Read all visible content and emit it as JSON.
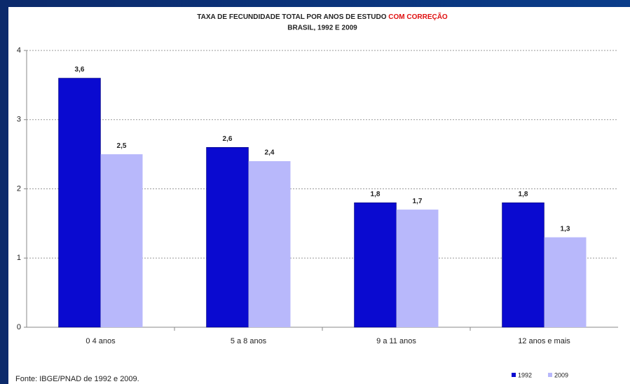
{
  "chart_data": {
    "type": "bar",
    "title": "TAXA DE FECUNDIDADE TOTAL POR ANOS DE ESTUDO",
    "title_highlight": "COM CORREÇÃO",
    "subtitle": "BRASIL, 1992 E 2009",
    "categories": [
      "0 4 anos",
      "5 a 8 anos",
      "9 a 11 anos",
      "12 anos e mais"
    ],
    "series": [
      {
        "name": "1992",
        "color": "#0a0ad0",
        "values": [
          3.6,
          2.6,
          1.8,
          1.8
        ],
        "value_labels": [
          "3,6",
          "2,6",
          "1,8",
          "1,8"
        ]
      },
      {
        "name": "2009",
        "color": "#b8b8fb",
        "values": [
          2.5,
          2.4,
          1.7,
          1.3
        ],
        "value_labels": [
          "2,5",
          "2,4",
          "1,7",
          "1,3"
        ]
      }
    ],
    "ylim": [
      0,
      4
    ],
    "yticks": [
      0,
      1,
      2,
      3,
      4
    ],
    "grid": true,
    "source": "Fonte: IBGE/PNAD de 1992 e 2009.",
    "legend": "bottom-right"
  }
}
